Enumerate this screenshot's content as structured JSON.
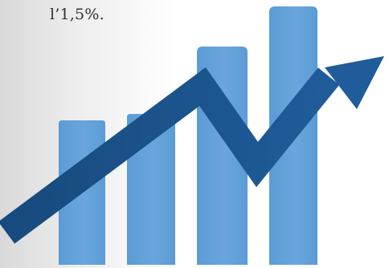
{
  "caption": {
    "text": "l’1,5%."
  },
  "graphic": {
    "bars_shown": 4,
    "bar_color": "#5b9bd5",
    "bar_color_light": "#6aa6dd",
    "arrow_color": "#1f5c99",
    "arrow_color_dark": "#174a7d"
  }
}
